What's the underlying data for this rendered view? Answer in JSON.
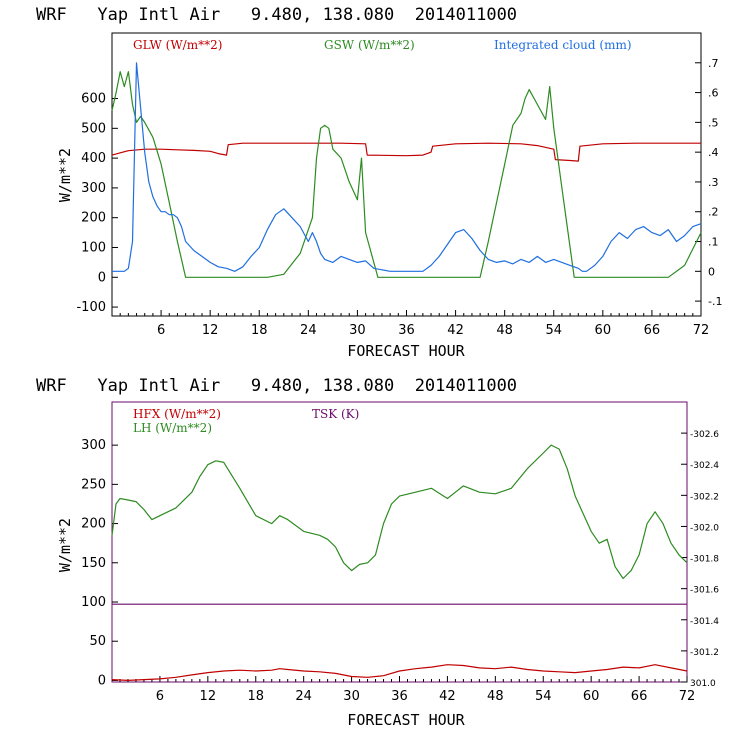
{
  "chart_data": [
    {
      "type": "line",
      "title": "WRF   Yap Intl Air   9.480, 138.080  2014011000",
      "xlabel": "FORECAST HOUR",
      "ylabel": "W/m**2",
      "xlim": [
        0,
        72
      ],
      "ylim": [
        -130,
        820
      ],
      "y2lim": [
        -0.15,
        0.8
      ],
      "x_ticks": [
        6,
        12,
        18,
        24,
        30,
        36,
        42,
        48,
        54,
        60,
        66,
        72
      ],
      "y_ticks": [
        -100,
        0,
        100,
        200,
        300,
        400,
        500,
        600
      ],
      "y_tick_labels": [
        "-100",
        "0",
        "100",
        "200",
        "300",
        "400",
        "500",
        "600"
      ],
      "y2_ticks": [
        -0.1,
        0,
        0.1,
        0.2,
        0.3,
        0.4,
        0.5,
        0.6,
        0.7
      ],
      "y2_tick_labels": [
        "-.1",
        "0",
        ".1",
        ".2",
        ".3",
        ".4",
        ".5",
        ".6",
        ".7"
      ],
      "series": [
        {
          "name": "GLW (W/m**2)",
          "color": "#c00000",
          "axis": "left",
          "x": [
            0,
            2,
            4,
            6,
            8,
            10,
            12,
            13,
            14,
            14.2,
            16,
            20,
            24,
            28,
            31,
            31.2,
            36,
            38,
            39,
            39.2,
            42,
            46,
            50,
            52,
            54,
            54.2,
            56,
            57,
            57.2,
            60,
            64,
            68,
            72
          ],
          "y": [
            410,
            425,
            430,
            430,
            428,
            426,
            423,
            415,
            410,
            445,
            450,
            450,
            450,
            450,
            448,
            410,
            408,
            410,
            420,
            440,
            448,
            450,
            448,
            442,
            430,
            395,
            392,
            390,
            440,
            448,
            450,
            450,
            450
          ]
        },
        {
          "name": "GSW (W/m**2)",
          "color": "#2e8b22",
          "axis": "left",
          "x": [
            0,
            0.5,
            1,
            1.5,
            2,
            2.5,
            3,
            3.5,
            4,
            5,
            6,
            7,
            8,
            9,
            19,
            21,
            23,
            24.5,
            25,
            25.5,
            26,
            26.5,
            27,
            28,
            29,
            30,
            30.5,
            31,
            32.5,
            45,
            46,
            48,
            49,
            50,
            50.5,
            51,
            52,
            53,
            53.5,
            54,
            55,
            56,
            56.5,
            68,
            70,
            72
          ],
          "y": [
            560,
            620,
            690,
            640,
            690,
            580,
            520,
            540,
            520,
            470,
            380,
            250,
            120,
            0,
            0,
            10,
            80,
            200,
            400,
            500,
            510,
            500,
            430,
            400,
            320,
            260,
            400,
            150,
            0,
            0,
            120,
            380,
            510,
            550,
            600,
            630,
            580,
            530,
            640,
            500,
            300,
            100,
            0,
            0,
            40,
            150
          ]
        },
        {
          "name": "Integrated cloud (mm)",
          "color": "#1f6fe0",
          "axis": "right",
          "x": [
            0,
            1,
            1.5,
            2,
            2.5,
            3,
            3.5,
            4,
            4.5,
            5,
            5.5,
            6,
            6.5,
            7,
            7.5,
            8,
            8.5,
            9,
            10,
            11,
            12,
            13,
            14,
            15,
            16,
            17,
            18,
            19,
            20,
            21,
            22,
            23,
            24,
            24.5,
            25,
            25.5,
            26,
            27,
            28,
            29,
            30,
            31,
            32,
            34,
            36,
            38,
            39,
            40,
            41,
            42,
            43,
            44,
            45,
            46,
            47,
            48,
            49,
            50,
            51,
            52,
            53,
            54,
            55,
            56,
            57,
            57.5,
            58,
            59,
            60,
            61,
            62,
            63,
            64,
            65,
            66,
            67,
            68,
            69,
            70,
            71,
            72
          ],
          "y": [
            0,
            0,
            0,
            0.01,
            0.1,
            0.7,
            0.55,
            0.4,
            0.3,
            0.25,
            0.22,
            0.2,
            0.2,
            0.19,
            0.19,
            0.18,
            0.15,
            0.1,
            0.07,
            0.05,
            0.03,
            0.015,
            0.01,
            0,
            0.015,
            0.05,
            0.08,
            0.14,
            0.19,
            0.21,
            0.18,
            0.15,
            0.1,
            0.13,
            0.1,
            0.06,
            0.04,
            0.03,
            0.05,
            0.04,
            0.03,
            0.035,
            0.01,
            0,
            0,
            0,
            0.02,
            0.05,
            0.09,
            0.13,
            0.14,
            0.11,
            0.07,
            0.04,
            0.03,
            0.035,
            0.025,
            0.04,
            0.03,
            0.05,
            0.03,
            0.04,
            0.03,
            0.02,
            0.01,
            0,
            0,
            0.02,
            0.05,
            0.1,
            0.13,
            0.11,
            0.14,
            0.15,
            0.13,
            0.12,
            0.14,
            0.1,
            0.12,
            0.15,
            0.16
          ]
        }
      ]
    },
    {
      "type": "line",
      "title": "WRF   Yap Intl Air   9.480, 138.080  2014011000",
      "xlabel": "FORECAST HOUR",
      "ylabel": "W/m**2",
      "xlim": [
        0,
        72
      ],
      "ylim": [
        -2,
        355
      ],
      "y2lim": [
        301.0,
        302.8
      ],
      "x_ticks": [
        6,
        12,
        18,
        24,
        30,
        36,
        42,
        48,
        54,
        60,
        66,
        72
      ],
      "y_ticks": [
        0,
        50,
        100,
        150,
        200,
        250,
        300
      ],
      "y_tick_labels": [
        "0",
        "50",
        "100",
        "150",
        "200",
        "250",
        "300"
      ],
      "y2_ticks": [
        301.0,
        301.2,
        301.4,
        301.6,
        301.8,
        302.0,
        302.2,
        302.4,
        302.6
      ],
      "y2_tick_labels": [
        "301.0",
        "-301.2",
        "-301.4",
        "-301.6",
        "-301.8",
        "-302.0",
        "-302.2",
        "-302.4",
        "-302.6"
      ],
      "series": [
        {
          "name": "HFX (W/m**2)",
          "color": "#c00000",
          "axis": "left",
          "x": [
            0,
            2,
            4,
            6,
            8,
            10,
            12,
            14,
            16,
            18,
            20,
            21,
            22,
            24,
            26,
            28,
            30,
            32,
            34,
            36,
            38,
            40,
            42,
            44,
            46,
            48,
            50,
            52,
            54,
            56,
            58,
            60,
            62,
            64,
            66,
            68,
            70,
            72
          ],
          "y": [
            1,
            0,
            1,
            2,
            4,
            7,
            10,
            12,
            13,
            12,
            13,
            15,
            14,
            12,
            11,
            9,
            5,
            4,
            6,
            12,
            15,
            17,
            20,
            19,
            16,
            15,
            17,
            14,
            12,
            11,
            10,
            12,
            14,
            17,
            16,
            20,
            16,
            12
          ]
        },
        {
          "name": "LH (W/m**2)",
          "color": "#2e8b22",
          "axis": "left",
          "x": [
            0,
            0.5,
            1,
            2,
            3,
            4,
            5,
            6,
            8,
            10,
            11,
            12,
            13,
            14,
            16,
            18,
            20,
            21,
            22,
            24,
            26,
            27,
            28,
            29,
            30,
            31,
            32,
            33,
            34,
            35,
            36,
            38,
            40,
            42,
            43,
            44,
            46,
            48,
            50,
            52,
            54,
            55,
            56,
            57,
            58,
            60,
            61,
            62,
            63,
            64,
            65,
            66,
            67,
            68,
            69,
            70,
            71,
            72
          ],
          "y": [
            185,
            225,
            232,
            230,
            228,
            218,
            205,
            210,
            220,
            240,
            260,
            275,
            280,
            278,
            245,
            210,
            200,
            210,
            205,
            190,
            185,
            180,
            170,
            150,
            140,
            148,
            150,
            160,
            200,
            225,
            235,
            240,
            245,
            232,
            240,
            248,
            240,
            238,
            245,
            270,
            290,
            300,
            295,
            270,
            235,
            190,
            175,
            180,
            145,
            130,
            140,
            160,
            200,
            215,
            200,
            175,
            160,
            150
          ]
        },
        {
          "name": "TSK (K)",
          "color": "#6a0a6a",
          "axis": "right",
          "x": [
            0,
            72
          ],
          "y": [
            301.5,
            301.5
          ]
        }
      ]
    }
  ]
}
